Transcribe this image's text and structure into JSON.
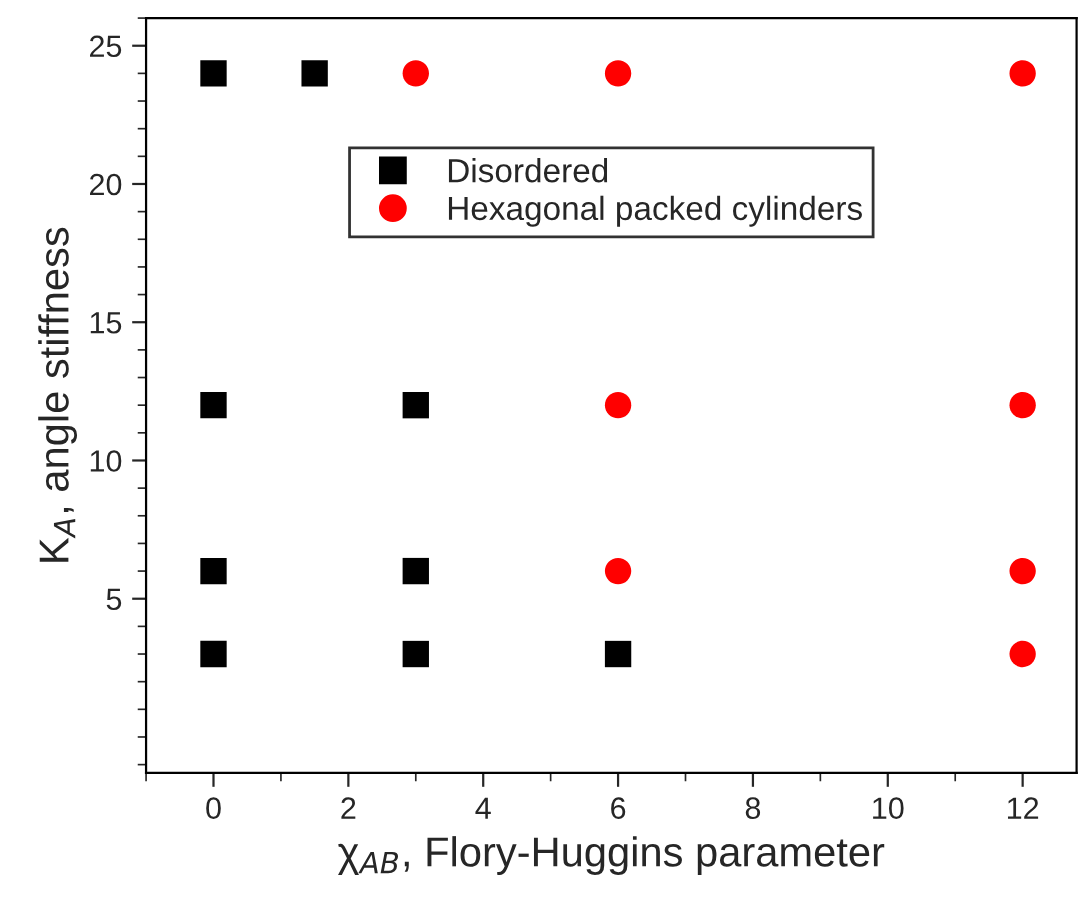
{
  "chart_data": {
    "type": "scatter",
    "xlabel": "χ$_{AB}$, Flory-Huggins parameter",
    "ylabel": "K$_{A}$, angle stiffness",
    "xlim": [
      -1,
      12.8
    ],
    "ylim": [
      -1.3,
      26
    ],
    "xticks": [
      0,
      2,
      4,
      6,
      8,
      10,
      12
    ],
    "yticks": [
      5,
      10,
      15,
      20,
      25
    ],
    "grid": false,
    "legend": "top",
    "series": [
      {
        "name": "Disordered",
        "color": "#000000",
        "marker": "square",
        "x": [
          0,
          1.5,
          0,
          3,
          0,
          3,
          0,
          3,
          6
        ],
        "values": [
          24,
          24,
          12,
          12,
          6,
          6,
          3,
          3,
          3
        ]
      },
      {
        "name": "Hexagonal packed cylinders",
        "color": "#ff0000",
        "marker": "circle",
        "x": [
          3,
          6,
          12,
          6,
          12,
          6,
          12,
          12
        ],
        "values": [
          24,
          24,
          24,
          12,
          12,
          6,
          6,
          3
        ]
      }
    ]
  }
}
